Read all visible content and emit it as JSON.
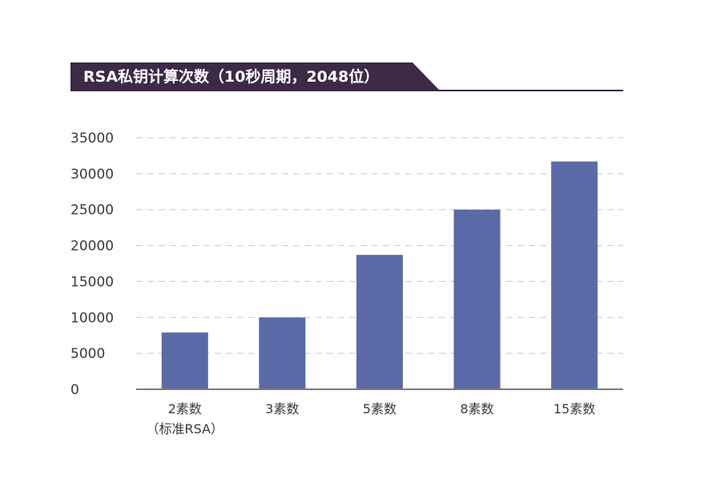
{
  "chart_data": {
    "type": "bar",
    "title": "RSA私钥计算次数（10秒周期，2048位）",
    "categories": [
      "2素数",
      "3素数",
      "5素数",
      "8素数",
      "15素数"
    ],
    "category_sublabels": [
      "（标准RSA）",
      "",
      "",
      "",
      ""
    ],
    "values": [
      7900,
      10000,
      18700,
      25000,
      31700
    ],
    "ylim": [
      0,
      35000
    ],
    "yticks": [
      0,
      5000,
      10000,
      15000,
      20000,
      25000,
      30000,
      35000
    ],
    "xlabel": "",
    "ylabel": "",
    "grid": true,
    "legend": "none",
    "colors": {
      "bar": "#5b6aa6",
      "title_bg": "#3c2a47",
      "grid": "#c8c8c8",
      "axis": "#7a7a7a"
    }
  }
}
